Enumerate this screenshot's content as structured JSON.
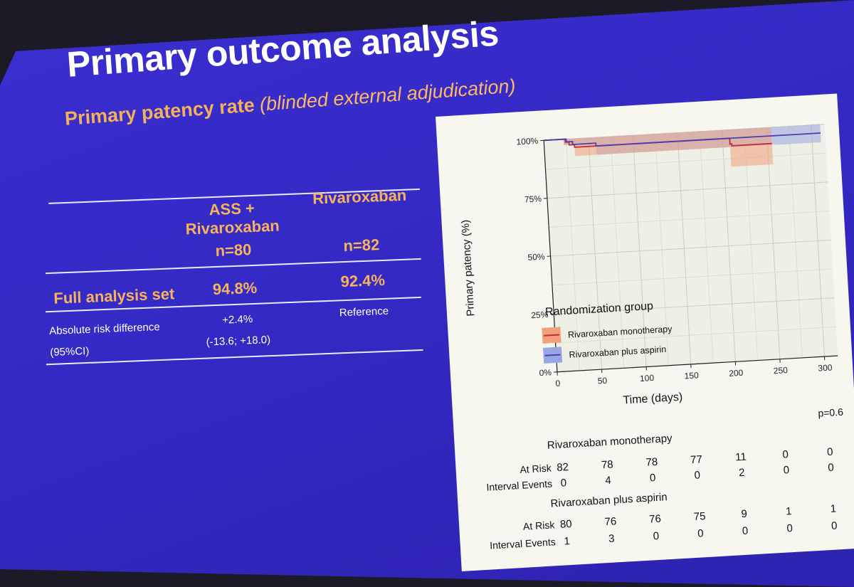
{
  "slide": {
    "title": "Primary outcome analysis",
    "subtitle_main": "Primary patency rate",
    "subtitle_note": "(blinded external adjudication)"
  },
  "results_table": {
    "col1_header_line1": "ASS +",
    "col1_header_line2": "Rivaroxaban",
    "col1_n": "n=80",
    "col2_header": "Rivaroxaban",
    "col2_n": "n=82",
    "row_full_label": "Full analysis set",
    "row_full_col1": "94.8%",
    "row_full_col2": "92.4%",
    "row_ard_label": "Absolute risk difference",
    "row_ard_ci_label": "(95%CI)",
    "row_ard_col1": "+2.4%",
    "row_ard_col1_ci": "(-13.6; +18.0)",
    "row_ard_col2": "Reference"
  },
  "chart_data": {
    "type": "line",
    "subtype": "kaplan-meier step curve with confidence bands",
    "xlabel": "Time (days)",
    "ylabel": "Primary patency (%)",
    "x_ticks": [
      0,
      50,
      100,
      150,
      200,
      250,
      300
    ],
    "y_ticks": [
      "0%",
      "25%",
      "50%",
      "75%",
      "100%"
    ],
    "xlim": [
      0,
      315
    ],
    "ylim": [
      0,
      100
    ],
    "legend_title": "Randomization group",
    "legend_position": "bottom-left",
    "p_value": "p=0.6",
    "colors": {
      "mono": "#c8283a",
      "mono_band": "#f0a07a",
      "aspirin": "#4a3fb0",
      "aspirin_band": "#9aa6e4"
    },
    "series": [
      {
        "name": "Rivaroxaban monotherapy",
        "steps": [
          [
            0,
            100
          ],
          [
            22,
            100
          ],
          [
            24,
            98.7
          ],
          [
            28,
            97.4
          ],
          [
            34,
            96.3
          ],
          [
            205,
            96.3
          ],
          [
            208,
            93.8
          ],
          [
            210,
            93.0
          ],
          [
            255,
            93.0
          ]
        ],
        "band_upper": [
          [
            22,
            100
          ],
          [
            205,
            100
          ],
          [
            255,
            100
          ]
        ],
        "band_lower": [
          [
            22,
            97.5
          ],
          [
            34,
            92.5
          ],
          [
            205,
            92.5
          ],
          [
            208,
            84
          ],
          [
            255,
            80
          ]
        ]
      },
      {
        "name": "Rivaroxaban plus aspirin",
        "steps": [
          [
            0,
            100
          ],
          [
            22,
            100
          ],
          [
            25,
            98.8
          ],
          [
            32,
            97.5
          ],
          [
            58,
            96.3
          ],
          [
            310,
            96.3
          ]
        ],
        "band_upper": [
          [
            22,
            100
          ],
          [
            310,
            100
          ]
        ],
        "band_lower": [
          [
            22,
            97.5
          ],
          [
            58,
            92.5
          ],
          [
            250,
            92.5
          ],
          [
            260,
            92.3
          ],
          [
            310,
            92.3
          ]
        ]
      }
    ],
    "risk_table": {
      "at_risk_label": "At Risk",
      "events_label": "Interval Events",
      "groups": [
        {
          "title": "Rivaroxaban monotherapy",
          "at_risk": [
            82,
            78,
            78,
            77,
            11,
            0,
            0
          ],
          "events": [
            0,
            4,
            0,
            0,
            2,
            0,
            0
          ]
        },
        {
          "title": "Rivaroxaban plus aspirin",
          "at_risk": [
            80,
            76,
            76,
            75,
            9,
            1,
            1
          ],
          "events": [
            1,
            3,
            0,
            0,
            0,
            0,
            0
          ]
        }
      ]
    }
  }
}
